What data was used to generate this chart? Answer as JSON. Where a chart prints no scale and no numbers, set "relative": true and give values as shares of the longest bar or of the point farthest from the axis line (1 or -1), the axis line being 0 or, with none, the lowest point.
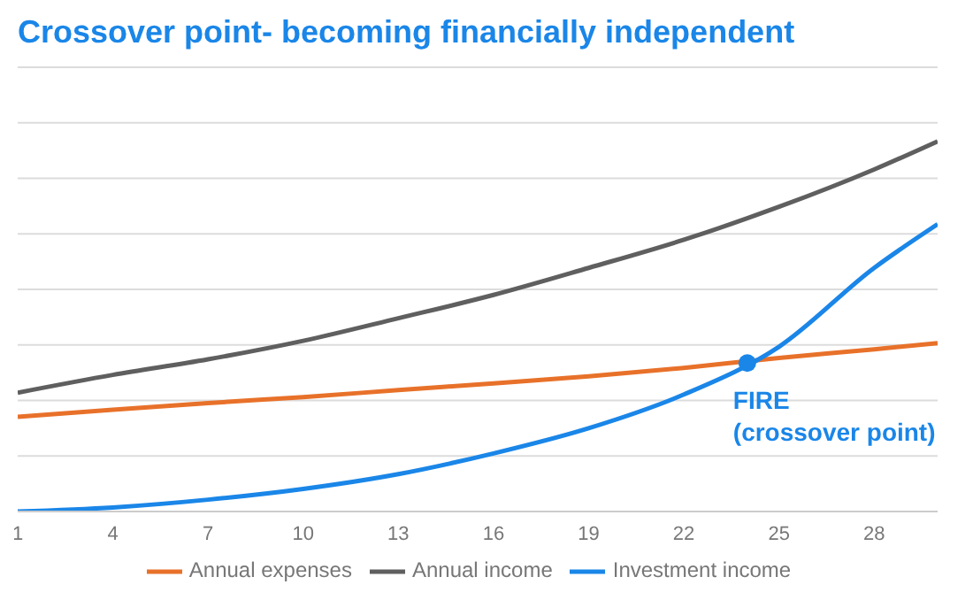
{
  "chart_data": {
    "type": "line",
    "title": "Crossover point- becoming financially independent",
    "relative": true,
    "x": [
      1,
      4,
      7,
      10,
      13,
      16,
      19,
      22,
      25,
      28,
      30
    ],
    "xlim": [
      1,
      30
    ],
    "xticks": [
      1,
      4,
      7,
      10,
      13,
      16,
      19,
      22,
      25,
      28
    ],
    "grid": "y",
    "legend": "bottom",
    "marker": "none",
    "line_style": "solid",
    "series": [
      {
        "name": "Annual income",
        "color": "#5f5f5f",
        "values": [
          0.321,
          0.369,
          0.411,
          0.461,
          0.522,
          0.585,
          0.658,
          0.734,
          0.823,
          0.924,
          1
        ]
      },
      {
        "name": "Annual expenses",
        "color": "#e8712a",
        "values": [
          0.256,
          0.275,
          0.293,
          0.309,
          0.328,
          0.346,
          0.365,
          0.388,
          0.415,
          0.438,
          0.455
        ]
      },
      {
        "name": "Investment income",
        "color": "#1a86e8",
        "values": [
          0,
          0.011,
          0.032,
          0.061,
          0.101,
          0.157,
          0.225,
          0.316,
          0.445,
          0.658,
          0.776
        ]
      }
    ],
    "annotations": [
      {
        "text": "FIRE\n(crossover point)",
        "x": 24,
        "y": 0.401
      }
    ]
  }
}
